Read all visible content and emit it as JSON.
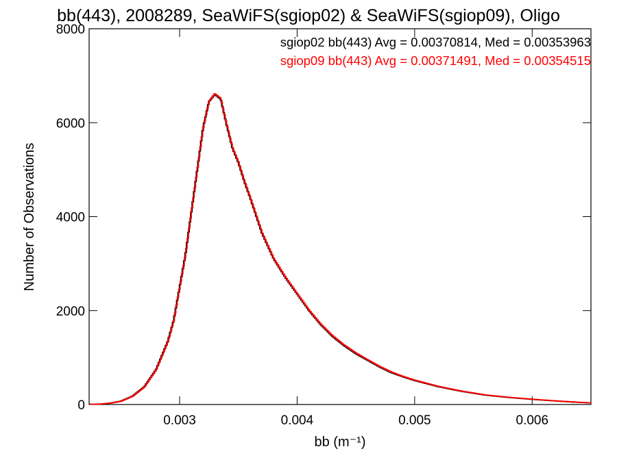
{
  "chart_data": {
    "type": "line",
    "title": "bb(443), 2008289, SeaWiFS(sgiop02) & SeaWiFS(sgiop09), Oligo",
    "xlabel": "bb (m⁻¹)",
    "ylabel": "Number of Observations",
    "xlim": [
      0.00223,
      0.0065
    ],
    "ylim": [
      0,
      8000
    ],
    "x_ticks": [
      0.003,
      0.004,
      0.005,
      0.006
    ],
    "x_tick_labels": [
      "0.003",
      "0.004",
      "0.005",
      "0.006"
    ],
    "y_ticks": [
      0,
      2000,
      4000,
      6000,
      8000
    ],
    "y_tick_labels": [
      "0",
      "2000",
      "4000",
      "6000",
      "8000"
    ],
    "grid": false,
    "legend_position": "top-right",
    "x": [
      0.0023,
      0.0024,
      0.0025,
      0.0026,
      0.0027,
      0.0028,
      0.0029,
      0.00295,
      0.003,
      0.00305,
      0.0031,
      0.00315,
      0.0032,
      0.00325,
      0.0033,
      0.00335,
      0.0034,
      0.00345,
      0.0035,
      0.00355,
      0.0036,
      0.0037,
      0.0038,
      0.0039,
      0.004,
      0.0041,
      0.0042,
      0.0043,
      0.0044,
      0.0045,
      0.0046,
      0.0047,
      0.0048,
      0.0049,
      0.005,
      0.0052,
      0.0054,
      0.0056,
      0.0058,
      0.006,
      0.0062,
      0.0064,
      0.0065
    ],
    "series": [
      {
        "name": "sgiop02",
        "color": "#000000",
        "values": [
          5,
          25,
          70,
          180,
          380,
          750,
          1350,
          1800,
          2500,
          3200,
          4100,
          5000,
          5900,
          6450,
          6600,
          6500,
          5950,
          5450,
          5150,
          4750,
          4400,
          3650,
          3100,
          2700,
          2350,
          2000,
          1700,
          1450,
          1250,
          1080,
          940,
          800,
          680,
          590,
          510,
          380,
          280,
          200,
          150,
          110,
          75,
          45,
          35
        ]
      },
      {
        "name": "sgiop09",
        "color": "#ff0000",
        "values": [
          5,
          25,
          68,
          175,
          370,
          735,
          1330,
          1780,
          2480,
          3180,
          4080,
          4980,
          5880,
          6450,
          6620,
          6520,
          5970,
          5470,
          5170,
          4770,
          4420,
          3670,
          3120,
          2720,
          2370,
          2020,
          1720,
          1470,
          1270,
          1100,
          955,
          815,
          695,
          600,
          520,
          388,
          286,
          205,
          154,
          113,
          78,
          47,
          36
        ]
      }
    ],
    "annotations": [
      {
        "text": "sgiop02 bb(443) Avg = 0.00370814, Med = 0.00353963",
        "color": "#000000"
      },
      {
        "text": "sgiop09 bb(443) Avg = 0.00371491, Med = 0.00354515",
        "color": "#ff0000"
      }
    ]
  }
}
